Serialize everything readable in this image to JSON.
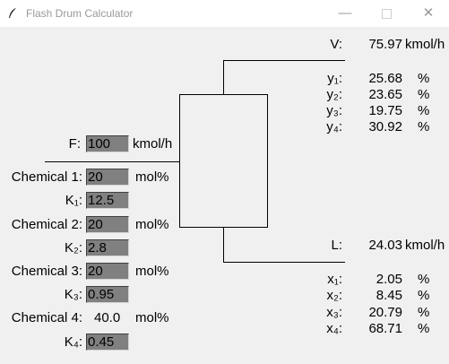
{
  "window": {
    "title": "Flash Drum Calculator"
  },
  "feed": {
    "label": "F:",
    "value": "100",
    "unit": "kmol/h"
  },
  "chemicals": [
    {
      "label": "Chemical 1:",
      "composition": "20",
      "unit": "mol%",
      "k_label": "K₁:",
      "k_value": "12.5"
    },
    {
      "label": "Chemical 2:",
      "composition": "20",
      "unit": "mol%",
      "k_label": "K₂:",
      "k_value": "2.8"
    },
    {
      "label": "Chemical 3:",
      "composition": "20",
      "unit": "mol%",
      "k_label": "K₃:",
      "k_value": "0.95"
    },
    {
      "label": "Chemical 4:",
      "composition": "40.0",
      "unit": "mol%",
      "k_label": "K₄:",
      "k_value": "0.45"
    }
  ],
  "vapor": {
    "label": "V:",
    "value": "75.97",
    "unit": "kmol/h",
    "fractions": [
      {
        "label": "y₁:",
        "value": "25.68",
        "unit": "%"
      },
      {
        "label": "y₂:",
        "value": "23.65",
        "unit": "%"
      },
      {
        "label": "y₃:",
        "value": "19.75",
        "unit": "%"
      },
      {
        "label": "y₄:",
        "value": "30.92",
        "unit": "%"
      }
    ]
  },
  "liquid": {
    "label": "L:",
    "value": "24.03",
    "unit": "kmol/h",
    "fractions": [
      {
        "label": "x₁:",
        "value": "2.05",
        "unit": "%"
      },
      {
        "label": "x₂:",
        "value": "8.45",
        "unit": "%"
      },
      {
        "label": "x₃:",
        "value": "20.79",
        "unit": "%"
      },
      {
        "label": "x₄:",
        "value": "68.71",
        "unit": "%"
      }
    ]
  }
}
